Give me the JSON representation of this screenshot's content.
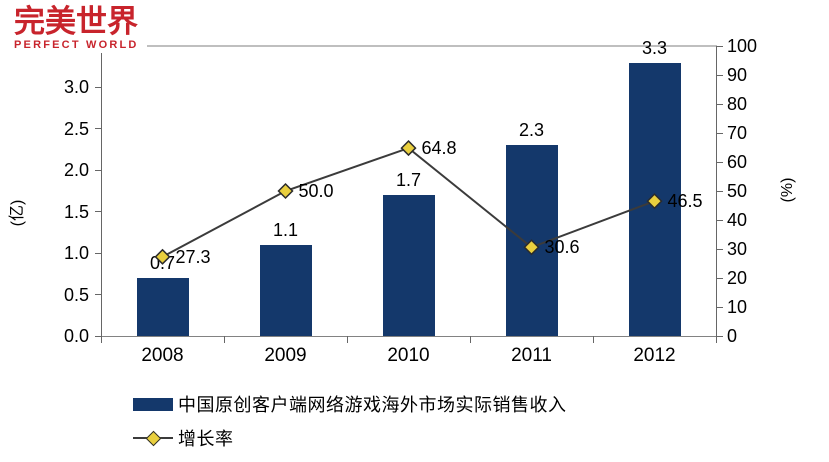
{
  "logo": {
    "text_cn": "完美世界",
    "text_en": "PERFECT WORLD",
    "color": "#C8242C"
  },
  "chart_data": {
    "type": "combo-bar-line",
    "categories": [
      "2008",
      "2009",
      "2010",
      "2011",
      "2012"
    ],
    "series": [
      {
        "name": "中国原创客户端网络游戏海外市场实际销售收入",
        "type": "bar",
        "axis": "left",
        "values": [
          0.7,
          1.1,
          1.7,
          2.3,
          3.3
        ],
        "labels": [
          "0.7",
          "1.1",
          "1.7",
          "2.3",
          "3.3"
        ],
        "color": "#14386B"
      },
      {
        "name": "增长率",
        "type": "line",
        "axis": "right",
        "values": [
          27.3,
          50.0,
          64.8,
          30.6,
          46.5
        ],
        "labels": [
          "27.3",
          "50.0",
          "64.8",
          "30.6",
          "46.5"
        ],
        "line_color": "#3B3B3B",
        "marker_shape": "diamond",
        "marker_fill": "#E9CF3E",
        "marker_stroke": "#2B2B2B"
      }
    ],
    "left_axis": {
      "title": "(亿)",
      "min": 0,
      "max": 3.5,
      "tick_step": 0.5,
      "tick_labels": [
        "0.0",
        "0.5",
        "1.0",
        "1.5",
        "2.0",
        "2.5",
        "3.0"
      ]
    },
    "right_axis": {
      "title": "(%)",
      "min": 0,
      "max": 100,
      "tick_step": 10,
      "tick_labels": [
        "0",
        "10",
        "20",
        "30",
        "40",
        "50",
        "60",
        "70",
        "80",
        "90",
        "100"
      ]
    },
    "grid": "top-border-only",
    "legend_position": "bottom-left",
    "plot_border_color": "#BFBFBF",
    "axis_color": "#666666",
    "text_color": "#000000"
  }
}
